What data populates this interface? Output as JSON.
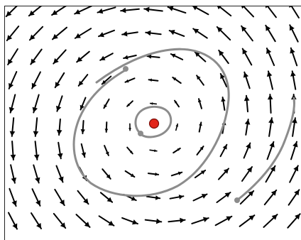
{
  "figure": {
    "kind": "vector-field-phase-portrait",
    "arrow_color": "#000000",
    "trajectory_color": "#8c8c8c",
    "equilibrium_color": "#e2261a",
    "equilibrium_stroke": "#7a0e08",
    "start_marker_color": "#8c8c8c",
    "rotation": "counterclockwise",
    "trajectories": 3,
    "equilibrium_point": 1
  }
}
